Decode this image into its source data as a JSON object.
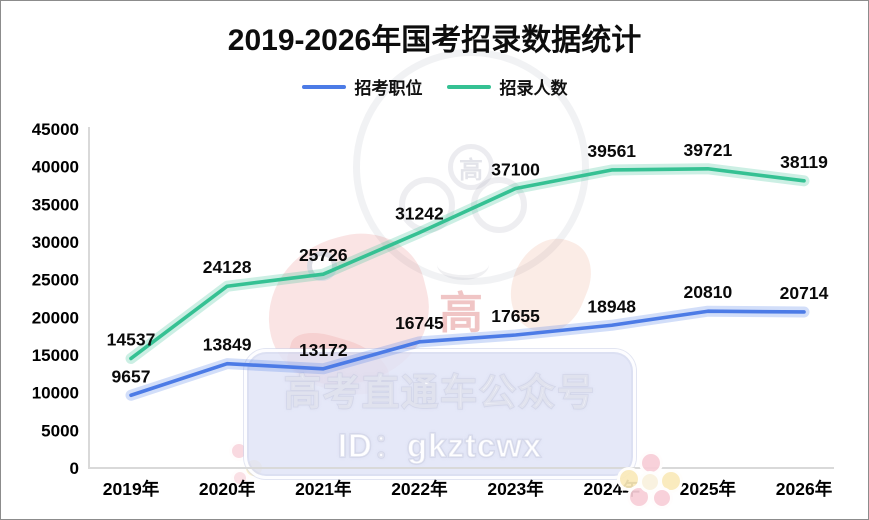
{
  "watermark": {
    "line1": "高考直通车公众号",
    "line2": "ID：gkztcwx",
    "cap_char": "高",
    "seal_char": "高"
  },
  "chart_data": {
    "type": "line",
    "title": "2019-2026年国考招录数据统计",
    "categories": [
      "2019年",
      "2020年",
      "2021年",
      "2022年",
      "2023年",
      "2024年",
      "2025年",
      "2026年"
    ],
    "series": [
      {
        "name": "招考职位",
        "color": "#4c7be6",
        "values": [
          9657,
          13849,
          13172,
          16745,
          17655,
          18948,
          20810,
          20714
        ]
      },
      {
        "name": "招录人数",
        "color": "#35c193",
        "values": [
          14537,
          24128,
          25726,
          31242,
          37100,
          39561,
          39721,
          38119
        ]
      }
    ],
    "ylim": [
      0,
      45000
    ],
    "ytick_step": 5000,
    "grid": false,
    "legend_position": "top",
    "axis_color": "#d9d9d9",
    "label_color": "#0a0a0a",
    "data_labels": true
  }
}
